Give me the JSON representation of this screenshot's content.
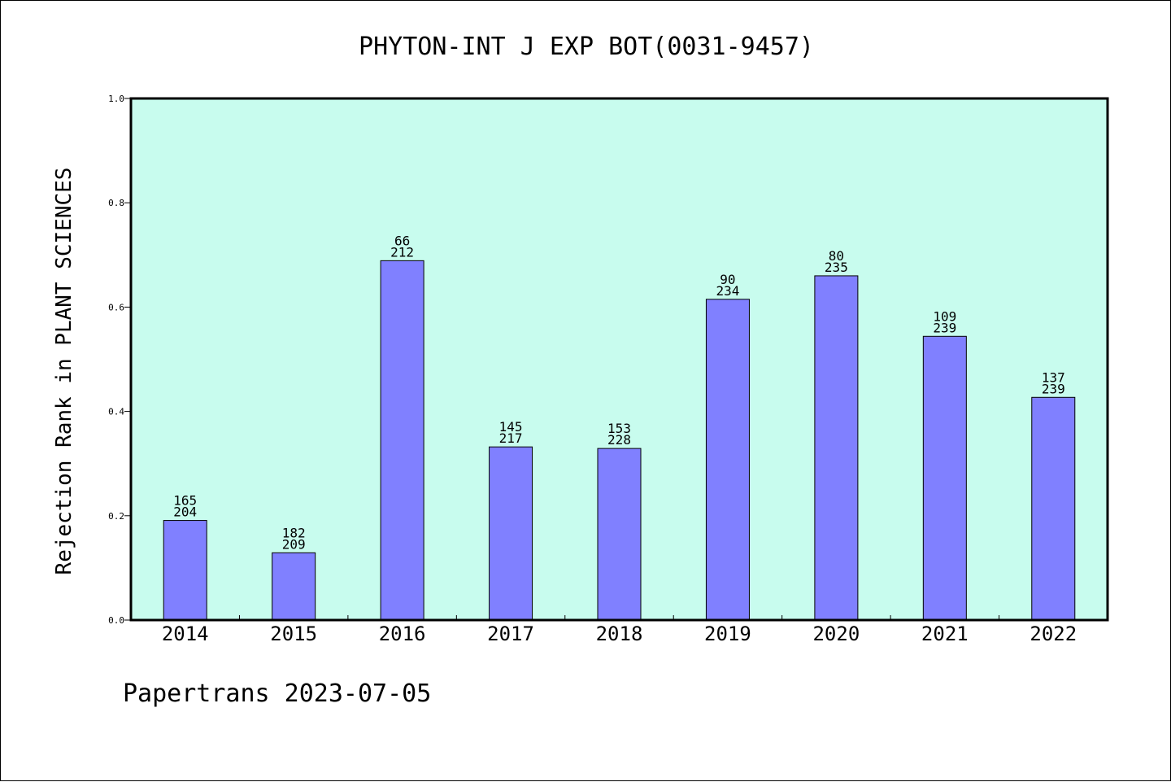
{
  "chart_data": {
    "type": "bar",
    "title": "PHYTON-INT J EXP BOT(0031-9457)",
    "ylabel": "Rejection Rank in PLANT SCIENCES",
    "xlabel": "",
    "ylim": [
      0.0,
      1.0
    ],
    "yticks": [
      "0.0",
      "0.2",
      "0.4",
      "0.6",
      "0.8",
      "1.0"
    ],
    "categories": [
      "2014",
      "2015",
      "2016",
      "2017",
      "2018",
      "2019",
      "2020",
      "2021",
      "2022"
    ],
    "values": [
      0.191,
      0.129,
      0.689,
      0.332,
      0.329,
      0.615,
      0.66,
      0.544,
      0.427
    ],
    "labels_top": [
      "165",
      "182",
      "66",
      "145",
      "153",
      "90",
      "80",
      "109",
      "137"
    ],
    "labels_bottom": [
      "204",
      "209",
      "212",
      "217",
      "228",
      "234",
      "235",
      "239",
      "239"
    ],
    "grid": false,
    "colors": {
      "plot_background": "#c8fcee",
      "bar_fill": "#8080ff",
      "bar_stroke": "#000000"
    }
  },
  "footer": {
    "text": "Papertrans 2023-07-05"
  }
}
